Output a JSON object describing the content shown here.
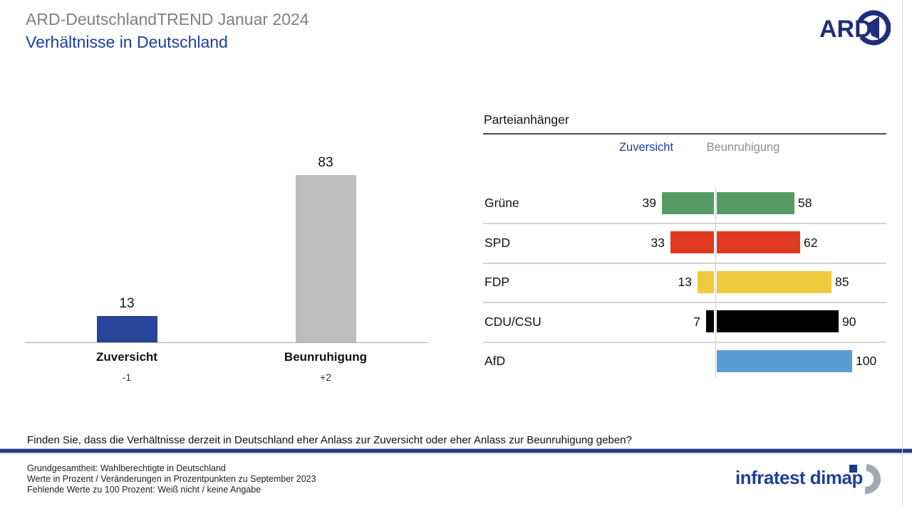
{
  "header": {
    "pretitle": "ARD-DeutschlandTREND Januar 2024",
    "title": "Verhältnisse in Deutschland",
    "ard_logo_text": "ARD"
  },
  "chart_data": [
    {
      "type": "bar",
      "title": "Verhältnisse in Deutschland – gesamt",
      "categories": [
        "Zuversicht",
        "Beunruhigung"
      ],
      "values": [
        13,
        83
      ],
      "changes": [
        "-1",
        "+2"
      ],
      "bar_colors": [
        "#27459b",
        "#bdbdbd"
      ],
      "ylim": [
        0,
        100
      ],
      "value_unit": "Prozent",
      "grid": false
    },
    {
      "type": "bar",
      "title": "Parteianhänger",
      "orientation": "horizontal-paired",
      "column_headers": [
        "Zuversicht",
        "Beunruhigung"
      ],
      "column_header_colors": [
        "#1c3f9d",
        "#8a8d90"
      ],
      "categories": [
        "Grüne",
        "SPD",
        "FDP",
        "CDU/CSU",
        "AfD"
      ],
      "series": [
        {
          "name": "Zuversicht",
          "values": [
            39,
            33,
            13,
            7,
            null
          ]
        },
        {
          "name": "Beunruhigung",
          "values": [
            58,
            62,
            85,
            90,
            100
          ]
        }
      ],
      "bar_colors": [
        "#579b64",
        "#e03b20",
        "#efca3e",
        "#000000",
        "#5b9bd5"
      ],
      "xlim": [
        0,
        100
      ]
    }
  ],
  "question": "Finden Sie, dass die Verhältnisse derzeit in Deutschland eher Anlass zur Zuversicht oder eher Anlass zur Beunruhigung geben?",
  "footnotes": [
    "Grundgesamtheit: Wahlberechtigte in Deutschland",
    "Werte in Prozent / Veränderungen in Prozentpunkten zu September 2023",
    "Fehlende Werte zu 100 Prozent: Weiß nicht / keine Angabe"
  ],
  "branding": {
    "source_logo_text": "infratest dimap"
  },
  "colors": {
    "accent_blue": "#1c3f9d",
    "title_gray": "#7d8084",
    "divider_navy": "#1f3a8c"
  }
}
